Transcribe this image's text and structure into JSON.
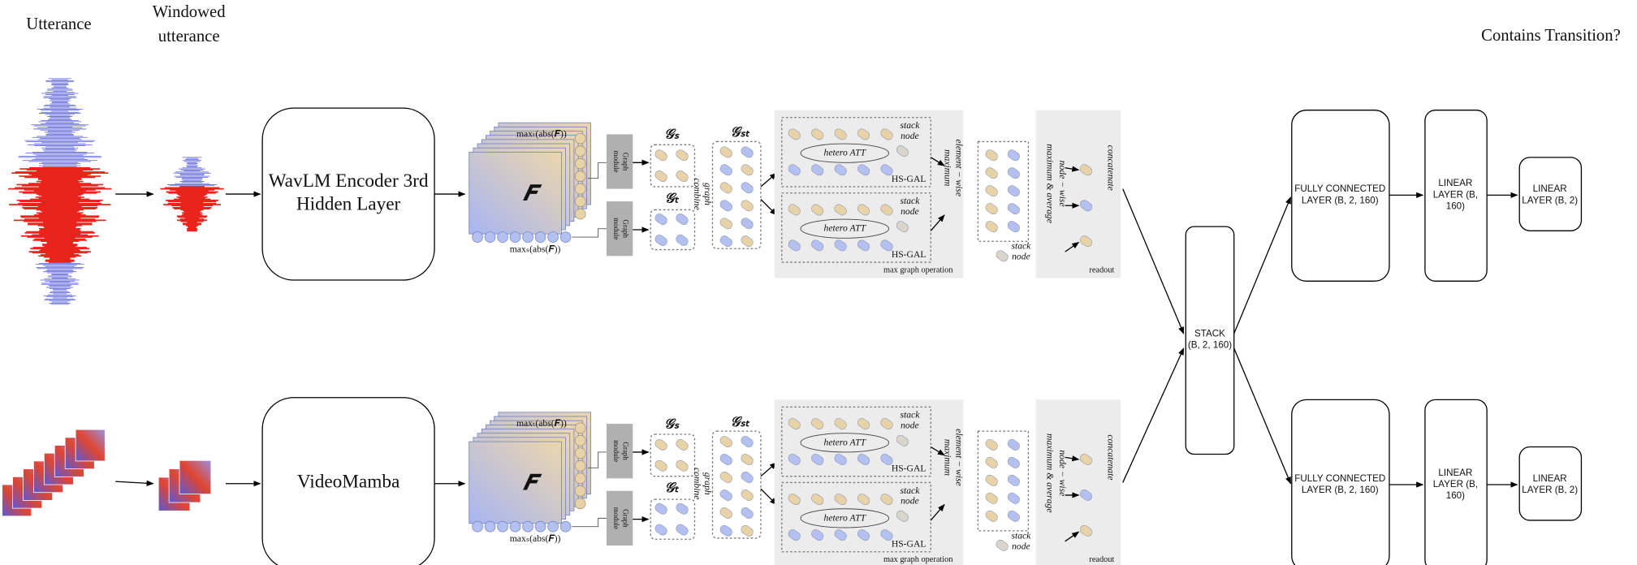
{
  "header": {
    "input": "Utterance",
    "windowed": [
      "Windowed",
      "utterance"
    ],
    "output": "Contains Transition?"
  },
  "stack": [
    "STACK",
    "(B, 2, 160)"
  ],
  "branches": [
    {
      "encoder": [
        "WavLM Encoder 3rd",
        "Hidden Layer"
      ],
      "graph": {
        "max_t": "maxₜ(abs(𝑭))",
        "feature": "𝑭",
        "max_s": "maxₛ(abs(𝑭))",
        "modules": [
          [
            "Graph",
            "module"
          ],
          [
            "Graph",
            "module"
          ]
        ],
        "g_s": "𝒢ₛ",
        "g_t": "𝒢ₜ",
        "combine": [
          "graph",
          "combine"
        ],
        "g_st": "𝒢ₛₜ",
        "gal": [
          {
            "stack": [
              "stack",
              "node"
            ],
            "att": "hetero ATT",
            "name": "HS-GAL"
          },
          {
            "stack": [
              "stack",
              "node"
            ],
            "att": "hetero ATT",
            "name": "HS-GAL"
          }
        ],
        "elementwise": [
          "element − wise",
          "maximum"
        ],
        "operation": "max graph operation",
        "stack": [
          "stack",
          "node"
        ],
        "nodewise": [
          "node − wise",
          "maximum & average"
        ],
        "concat": "concatenate",
        "readout": "readout"
      },
      "fc": [
        "FULLY CONNECTED",
        "LAYER (B, 2, 160)"
      ],
      "linear1": [
        "LINEAR",
        "LAYER (B,",
        "160)"
      ],
      "linear2": [
        "LINEAR",
        "LAYER (B, 2)"
      ]
    },
    {
      "encoder": [
        "VideoMamba"
      ],
      "graph": {
        "max_t": "maxₜ(abs(𝑭))",
        "feature": "𝑭",
        "max_s": "maxₛ(abs(𝑭))",
        "modules": [
          [
            "Graph",
            "module"
          ],
          [
            "Graph",
            "module"
          ]
        ],
        "g_s": "𝒢ₛ",
        "g_t": "𝒢ₜ",
        "combine": [
          "graph",
          "combine"
        ],
        "g_st": "𝒢ₛₜ",
        "gal": [
          {
            "stack": [
              "stack",
              "node"
            ],
            "att": "hetero ATT",
            "name": "HS-GAL"
          },
          {
            "stack": [
              "stack",
              "node"
            ],
            "att": "hetero ATT",
            "name": "HS-GAL"
          }
        ],
        "elementwise": [
          "element − wise",
          "maximum"
        ],
        "operation": "max graph operation",
        "stack": [
          "stack",
          "node"
        ],
        "nodewise": [
          "node − wise",
          "maximum & average"
        ],
        "concat": "concatenate",
        "readout": "readout"
      },
      "fc": [
        "FULLY CONNECTED",
        "LAYER (B, 2, 160)"
      ],
      "linear1": [
        "LINEAR",
        "LAYER (B,",
        "160)"
      ],
      "linear2": [
        "LINEAR",
        "LAYER (B, 2)"
      ]
    }
  ]
}
